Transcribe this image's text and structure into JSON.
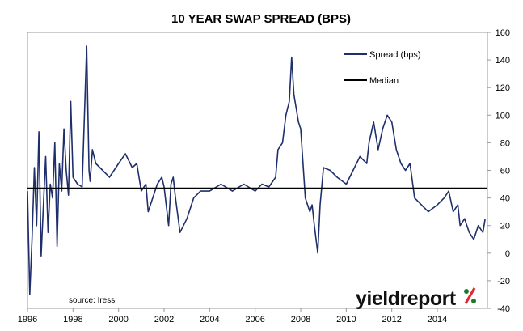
{
  "chart_data": {
    "type": "line",
    "title": "10 YEAR SWAP SPREAD (BPS)",
    "xlabel": "",
    "ylabel": "",
    "x_ticks": [
      "1996",
      "1998",
      "2000",
      "2002",
      "2004",
      "2006",
      "2008",
      "2010",
      "2012",
      "2014"
    ],
    "y_ticks": [
      -40,
      -20,
      0,
      20,
      40,
      60,
      80,
      100,
      120,
      140,
      160
    ],
    "xlim": [
      1996,
      2016.2
    ],
    "ylim": [
      -40,
      160
    ],
    "y_axis_side": "right",
    "grid": false,
    "legend_position": "top-right",
    "series": [
      {
        "name": "Spread (bps)",
        "color": "#1f2f6b",
        "x": [
          1996.0,
          1996.1,
          1996.2,
          1996.3,
          1996.4,
          1996.5,
          1996.6,
          1996.7,
          1996.8,
          1996.9,
          1997.0,
          1997.1,
          1997.2,
          1997.3,
          1997.4,
          1997.5,
          1997.6,
          1997.7,
          1997.8,
          1997.9,
          1998.0,
          1998.2,
          1998.4,
          1998.6,
          1998.7,
          1998.75,
          1998.85,
          1999.0,
          1999.3,
          1999.6,
          2000.0,
          2000.3,
          2000.6,
          2000.8,
          2001.0,
          2001.2,
          2001.3,
          2001.5,
          2001.7,
          2001.9,
          2002.0,
          2002.2,
          2002.3,
          2002.4,
          2002.5,
          2002.7,
          2003.0,
          2003.3,
          2003.6,
          2004.0,
          2004.5,
          2005.0,
          2005.5,
          2006.0,
          2006.3,
          2006.6,
          2006.9,
          2007.0,
          2007.2,
          2007.35,
          2007.5,
          2007.6,
          2007.7,
          2007.9,
          2008.0,
          2008.2,
          2008.4,
          2008.5,
          2008.6,
          2008.75,
          2008.85,
          2009.0,
          2009.3,
          2009.6,
          2010.0,
          2010.3,
          2010.6,
          2010.9,
          2011.0,
          2011.2,
          2011.4,
          2011.6,
          2011.8,
          2012.0,
          2012.2,
          2012.4,
          2012.6,
          2012.8,
          2013.0,
          2013.3,
          2013.6,
          2014.0,
          2014.3,
          2014.5,
          2014.7,
          2014.9,
          2015.0,
          2015.2,
          2015.4,
          2015.6,
          2015.8,
          2016.0,
          2016.1
        ],
        "values": [
          45,
          -30,
          10,
          62,
          20,
          88,
          -2,
          35,
          70,
          15,
          50,
          40,
          80,
          5,
          65,
          45,
          90,
          60,
          42,
          110,
          55,
          50,
          48,
          150,
          60,
          52,
          75,
          65,
          60,
          55,
          65,
          72,
          62,
          65,
          45,
          50,
          30,
          40,
          50,
          55,
          48,
          20,
          50,
          55,
          40,
          15,
          25,
          40,
          45,
          45,
          50,
          45,
          50,
          45,
          50,
          48,
          55,
          75,
          80,
          100,
          110,
          142,
          115,
          95,
          90,
          40,
          30,
          35,
          20,
          0,
          35,
          62,
          60,
          55,
          50,
          60,
          70,
          65,
          80,
          95,
          75,
          90,
          100,
          95,
          75,
          65,
          60,
          65,
          40,
          35,
          30,
          35,
          40,
          45,
          30,
          35,
          20,
          25,
          15,
          10,
          20,
          15,
          25
        ]
      },
      {
        "name": "Median",
        "color": "#000000",
        "x": [
          1996.0,
          2016.2
        ],
        "values": [
          47,
          47
        ]
      }
    ],
    "annotations": [
      "source: Iress"
    ]
  },
  "brand": {
    "text": "yieldreport",
    "symbol": "%",
    "color": "#111111",
    "symbol_colors": [
      "#1a7a2e",
      "#e0282e"
    ]
  }
}
